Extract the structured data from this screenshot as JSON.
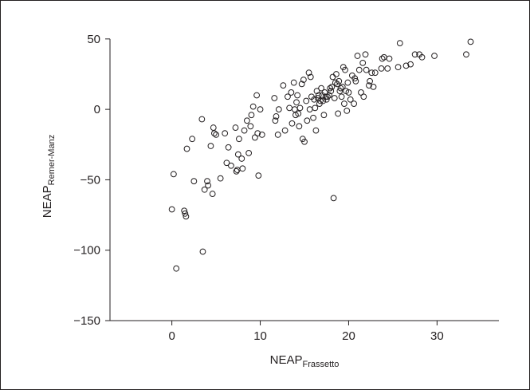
{
  "chart_data": {
    "type": "scatter",
    "xlabel_main": "NEAP",
    "xlabel_sub": "Frassetto",
    "ylabel_main": "NEAP",
    "ylabel_sub": "Remer-Manz",
    "xlim": [
      -7,
      37
    ],
    "ylim": [
      -150,
      55
    ],
    "x_ticks": [
      0,
      10,
      20,
      30
    ],
    "y_ticks": [
      50,
      0,
      -50,
      -100,
      -150
    ],
    "x_tick_labels": [
      "0",
      "10",
      "20",
      "30"
    ],
    "y_tick_labels": [
      "50",
      "0",
      "−50",
      "−100",
      "−150"
    ],
    "grid": false,
    "series": [
      {
        "points": [
          [
            0.0,
            -71
          ],
          [
            0.2,
            -46
          ],
          [
            0.5,
            -113
          ],
          [
            1.4,
            -72
          ],
          [
            1.5,
            -74
          ],
          [
            1.6,
            -76
          ],
          [
            1.7,
            -28
          ],
          [
            2.3,
            -21
          ],
          [
            2.5,
            -51
          ],
          [
            3.4,
            -7
          ],
          [
            3.5,
            -101
          ],
          [
            3.7,
            -57
          ],
          [
            4.0,
            -51
          ],
          [
            4.1,
            -54
          ],
          [
            4.4,
            -26
          ],
          [
            4.6,
            -60
          ],
          [
            4.7,
            -13
          ],
          [
            4.8,
            -17
          ],
          [
            5.0,
            -18
          ],
          [
            5.5,
            -49
          ],
          [
            6.0,
            -17
          ],
          [
            6.2,
            -38
          ],
          [
            6.4,
            -27
          ],
          [
            6.7,
            -40
          ],
          [
            7.2,
            -13
          ],
          [
            7.3,
            -44
          ],
          [
            7.4,
            -43
          ],
          [
            7.5,
            -32
          ],
          [
            7.6,
            -21
          ],
          [
            7.9,
            -35
          ],
          [
            8.0,
            -42
          ],
          [
            8.2,
            -15
          ],
          [
            8.5,
            -8
          ],
          [
            8.7,
            -31
          ],
          [
            8.9,
            -12
          ],
          [
            9.0,
            -4
          ],
          [
            9.2,
            2
          ],
          [
            9.4,
            -20
          ],
          [
            9.6,
            10
          ],
          [
            9.7,
            -17
          ],
          [
            9.8,
            -47
          ],
          [
            10.0,
            0
          ],
          [
            10.2,
            -18
          ],
          [
            11.6,
            8
          ],
          [
            11.7,
            -8
          ],
          [
            11.8,
            -5
          ],
          [
            12.0,
            -18
          ],
          [
            12.1,
            0
          ],
          [
            12.6,
            17
          ],
          [
            12.8,
            -15
          ],
          [
            13.1,
            9
          ],
          [
            13.3,
            1
          ],
          [
            13.5,
            12
          ],
          [
            13.6,
            -10
          ],
          [
            13.8,
            19
          ],
          [
            13.9,
            0
          ],
          [
            14.0,
            -4
          ],
          [
            14.1,
            5
          ],
          [
            14.2,
            10
          ],
          [
            14.3,
            -3
          ],
          [
            14.4,
            -12
          ],
          [
            14.5,
            1
          ],
          [
            14.7,
            18
          ],
          [
            14.8,
            -21
          ],
          [
            14.9,
            21
          ],
          [
            15.0,
            -23
          ],
          [
            15.2,
            6
          ],
          [
            15.3,
            -8
          ],
          [
            15.5,
            26
          ],
          [
            15.6,
            0
          ],
          [
            15.7,
            23
          ],
          [
            15.8,
            9
          ],
          [
            16.0,
            -6
          ],
          [
            16.1,
            7
          ],
          [
            16.2,
            1
          ],
          [
            16.3,
            -15
          ],
          [
            16.4,
            13
          ],
          [
            16.5,
            8
          ],
          [
            16.6,
            10
          ],
          [
            16.7,
            4
          ],
          [
            16.8,
            6
          ],
          [
            16.9,
            15
          ],
          [
            17.0,
            10
          ],
          [
            17.1,
            6
          ],
          [
            17.2,
            -4
          ],
          [
            17.3,
            12
          ],
          [
            17.4,
            9
          ],
          [
            17.5,
            7
          ],
          [
            17.6,
            9
          ],
          [
            17.8,
            10
          ],
          [
            17.9,
            15
          ],
          [
            18.0,
            13
          ],
          [
            18.1,
            16
          ],
          [
            18.2,
            23
          ],
          [
            18.3,
            -63
          ],
          [
            18.4,
            8
          ],
          [
            18.5,
            19
          ],
          [
            18.6,
            25
          ],
          [
            18.7,
            18
          ],
          [
            18.8,
            -3
          ],
          [
            18.9,
            20
          ],
          [
            19.0,
            13
          ],
          [
            19.1,
            15
          ],
          [
            19.2,
            9
          ],
          [
            19.3,
            16
          ],
          [
            19.4,
            30
          ],
          [
            19.5,
            4
          ],
          [
            19.6,
            28
          ],
          [
            19.7,
            13
          ],
          [
            19.8,
            -1
          ],
          [
            19.9,
            19
          ],
          [
            20.0,
            12
          ],
          [
            20.2,
            7
          ],
          [
            20.4,
            24
          ],
          [
            20.6,
            4
          ],
          [
            20.7,
            22
          ],
          [
            20.8,
            20
          ],
          [
            21.0,
            38
          ],
          [
            21.2,
            28
          ],
          [
            21.4,
            12
          ],
          [
            21.6,
            33
          ],
          [
            21.7,
            9
          ],
          [
            21.9,
            39
          ],
          [
            22.0,
            28
          ],
          [
            22.3,
            17
          ],
          [
            22.4,
            20
          ],
          [
            22.6,
            26
          ],
          [
            22.8,
            16
          ],
          [
            23.0,
            26
          ],
          [
            23.7,
            29
          ],
          [
            23.8,
            36
          ],
          [
            24.0,
            37
          ],
          [
            24.4,
            29
          ],
          [
            24.6,
            36
          ],
          [
            25.6,
            30
          ],
          [
            25.8,
            47
          ],
          [
            26.5,
            31
          ],
          [
            27.0,
            32
          ],
          [
            27.5,
            39
          ],
          [
            28.0,
            39
          ],
          [
            28.3,
            37
          ],
          [
            29.7,
            38
          ],
          [
            33.3,
            39
          ],
          [
            33.8,
            48
          ]
        ]
      }
    ]
  }
}
